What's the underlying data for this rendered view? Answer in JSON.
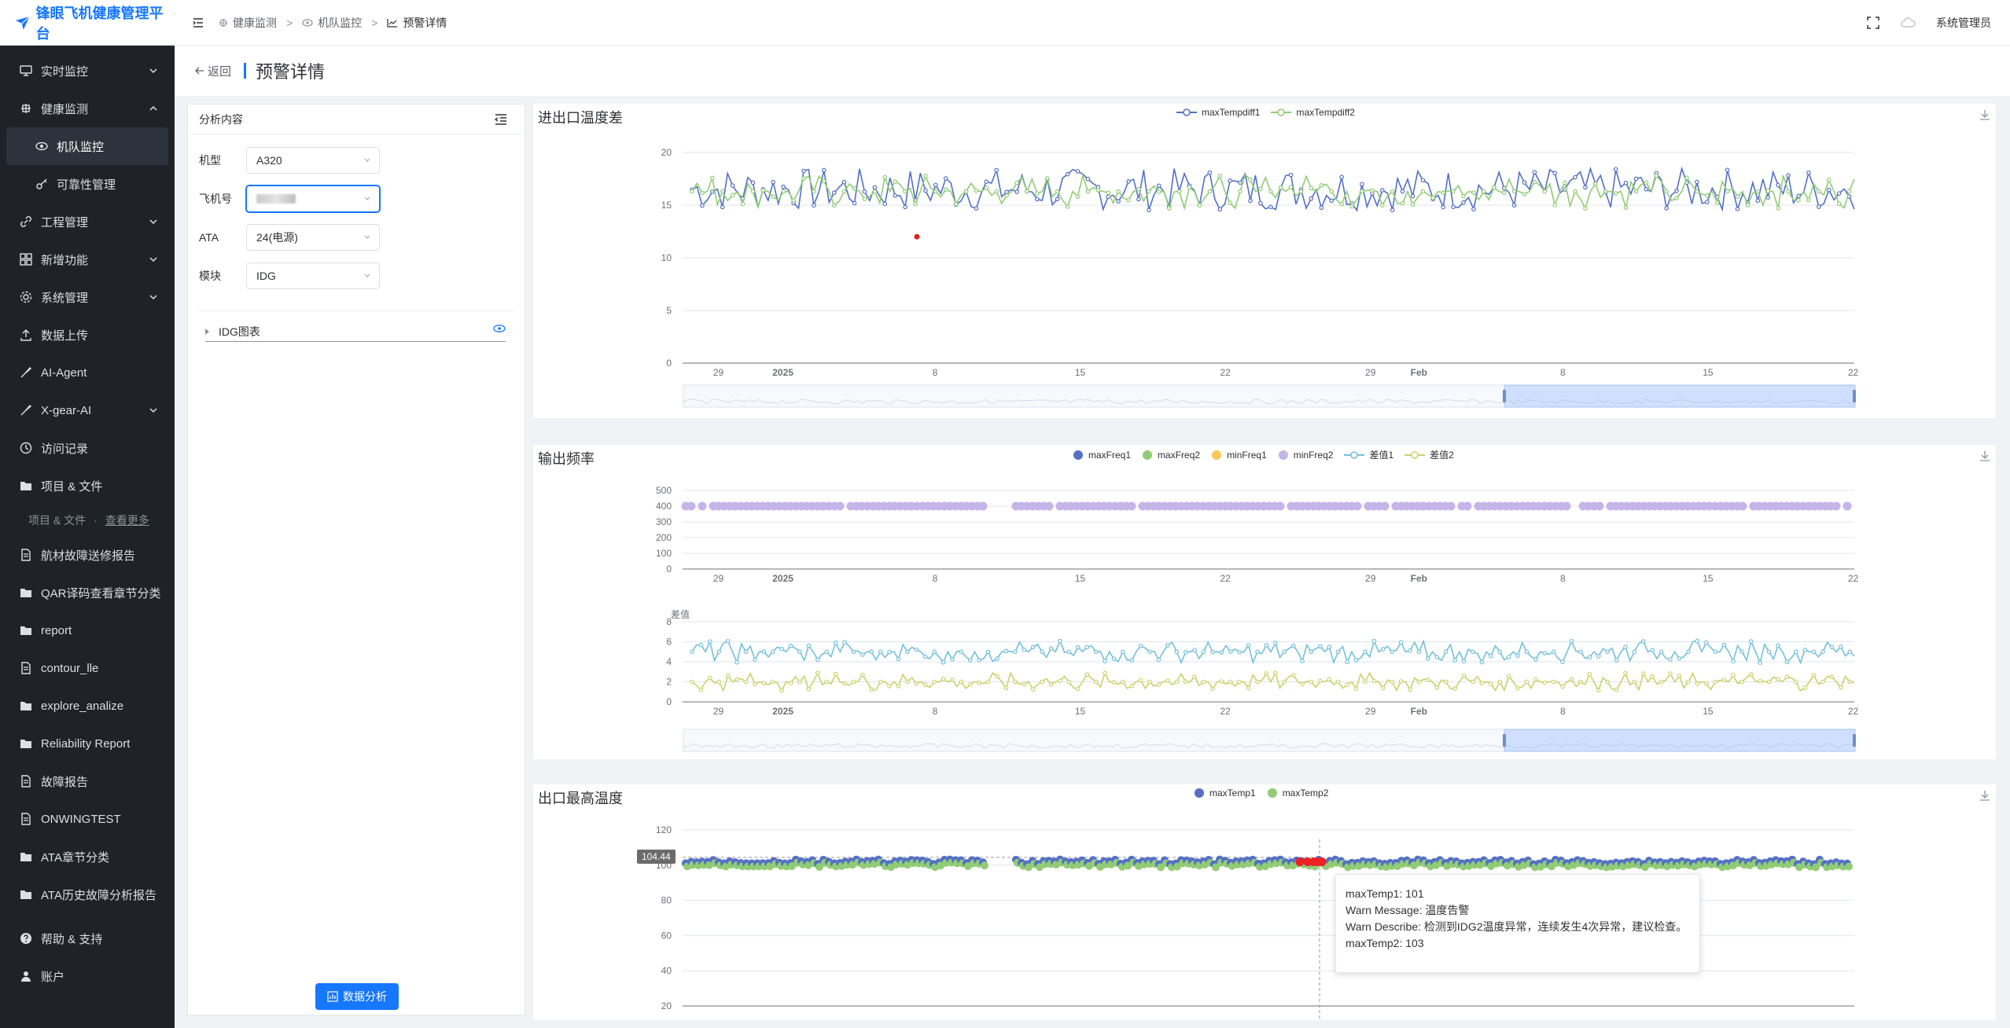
{
  "app": {
    "title": "锋眼飞机健康管理平台",
    "user": "系统管理员"
  },
  "breadcrumb": [
    "健康监测",
    "机队监控",
    "预警详情"
  ],
  "sidebar": {
    "items": [
      {
        "label": "实时监控",
        "icon": "monitor-icon",
        "arrow": true
      },
      {
        "label": "健康监测",
        "icon": "health-icon",
        "arrow": true,
        "expanded": true
      },
      {
        "label": "机队监控",
        "icon": "eye-icon",
        "sub": true,
        "active": true
      },
      {
        "label": "可靠性管理",
        "icon": "key-icon",
        "sub": true
      },
      {
        "label": "工程管理",
        "icon": "link-icon",
        "arrow": true
      },
      {
        "label": "新增功能",
        "icon": "grid-icon",
        "arrow": true
      },
      {
        "label": "系统管理",
        "icon": "gear-icon",
        "arrow": true
      },
      {
        "label": "数据上传",
        "icon": "upload-icon"
      },
      {
        "label": "AI-Agent",
        "icon": "brush-icon"
      },
      {
        "label": "X-gear-AI",
        "icon": "brush-icon",
        "arrow": true
      },
      {
        "label": "访问记录",
        "icon": "history-icon"
      },
      {
        "label": "项目 & 文件",
        "icon": "folder-icon"
      }
    ],
    "group": {
      "label": "项目 & 文件",
      "more": "查看更多"
    },
    "files": [
      {
        "label": "航材故障送修报告",
        "icon": "document-icon"
      },
      {
        "label": "QAR译码查看章节分类",
        "icon": "folder-icon"
      },
      {
        "label": "report",
        "icon": "folder-icon"
      },
      {
        "label": "contour_lle",
        "icon": "document-icon"
      },
      {
        "label": "explore_analize",
        "icon": "folder-icon"
      },
      {
        "label": "Reliability Report",
        "icon": "folder-icon"
      },
      {
        "label": "故障报告",
        "icon": "document-icon"
      },
      {
        "label": "ONWINGTEST",
        "icon": "document-icon"
      },
      {
        "label": "ATA章节分类",
        "icon": "folder-icon"
      },
      {
        "label": "ATA历史故障分析报告",
        "icon": "folder-icon"
      }
    ],
    "bottom": [
      {
        "label": "帮助 & 支持",
        "icon": "help-icon"
      },
      {
        "label": "账户",
        "icon": "user-icon"
      }
    ]
  },
  "page": {
    "back": "返回",
    "title": "预警详情"
  },
  "left_panel": {
    "header": "分析内容",
    "fields": [
      {
        "label": "机型",
        "value": "A320"
      },
      {
        "label": "飞机号",
        "value": ""
      },
      {
        "label": "ATA",
        "value": "24(电源)"
      },
      {
        "label": "模块",
        "value": "IDG"
      }
    ],
    "tree_item": "IDG图表",
    "analyze_button": "数据分析"
  },
  "xaxis_ticks": [
    "29",
    "2025",
    "8",
    "15",
    "22",
    "29",
    "Feb",
    "8",
    "15",
    "22"
  ],
  "chart_data": [
    {
      "type": "line",
      "title": "进出口温度差",
      "series": [
        {
          "name": "maxTempdiff1",
          "color": "#5470c6"
        },
        {
          "name": "maxTempdiff2",
          "color": "#91cc75"
        }
      ],
      "ylim": [
        0,
        20
      ],
      "yticks": [
        0,
        5,
        10,
        15,
        20
      ],
      "x_ticks": [
        "29",
        "2025",
        "8",
        "15",
        "22",
        "29",
        "Feb",
        "8",
        "15",
        "22"
      ],
      "legend": "top-center",
      "annotations": [
        {
          "type": "alert-point",
          "value": 12,
          "color": "#e02020"
        }
      ]
    },
    {
      "type": "scatter",
      "title": "输出频率",
      "series": [
        {
          "name": "maxFreq1",
          "color": "#5470c6"
        },
        {
          "name": "maxFreq2",
          "color": "#91cc75"
        },
        {
          "name": "minFreq1",
          "color": "#fac858"
        },
        {
          "name": "minFreq2",
          "color": "#c6b4e8"
        }
      ],
      "ylim": [
        0,
        500
      ],
      "yticks": [
        0,
        100,
        200,
        300,
        400,
        500
      ],
      "value_level": 400,
      "legend": "top-center"
    },
    {
      "type": "line",
      "title": "",
      "ylabel": "差值",
      "series": [
        {
          "name": "差值1",
          "color": "#73c0de"
        },
        {
          "name": "差值2",
          "color": "#c8d36a"
        }
      ],
      "ylim": [
        0,
        8
      ],
      "yticks": [
        0,
        2,
        4,
        6,
        8
      ],
      "levels": {
        "差值1": 5,
        "差值2": 2
      }
    },
    {
      "type": "scatter",
      "title": "出口最高温度",
      "series": [
        {
          "name": "maxTemp1",
          "color": "#5470c6"
        },
        {
          "name": "maxTemp2",
          "color": "#91cc75"
        }
      ],
      "ylim": [
        20,
        120
      ],
      "yticks": [
        20,
        40,
        60,
        80,
        100,
        120
      ],
      "value_level": 101,
      "crosshair_value": "104.44",
      "tooltip": {
        "lines": [
          "maxTemp1: 101",
          "Warn Message: 温度告警",
          "Warn Describe: 检测到IDG2温度异常，连续发生4次异常，建议检查。",
          "maxTemp2: 103"
        ]
      }
    }
  ]
}
